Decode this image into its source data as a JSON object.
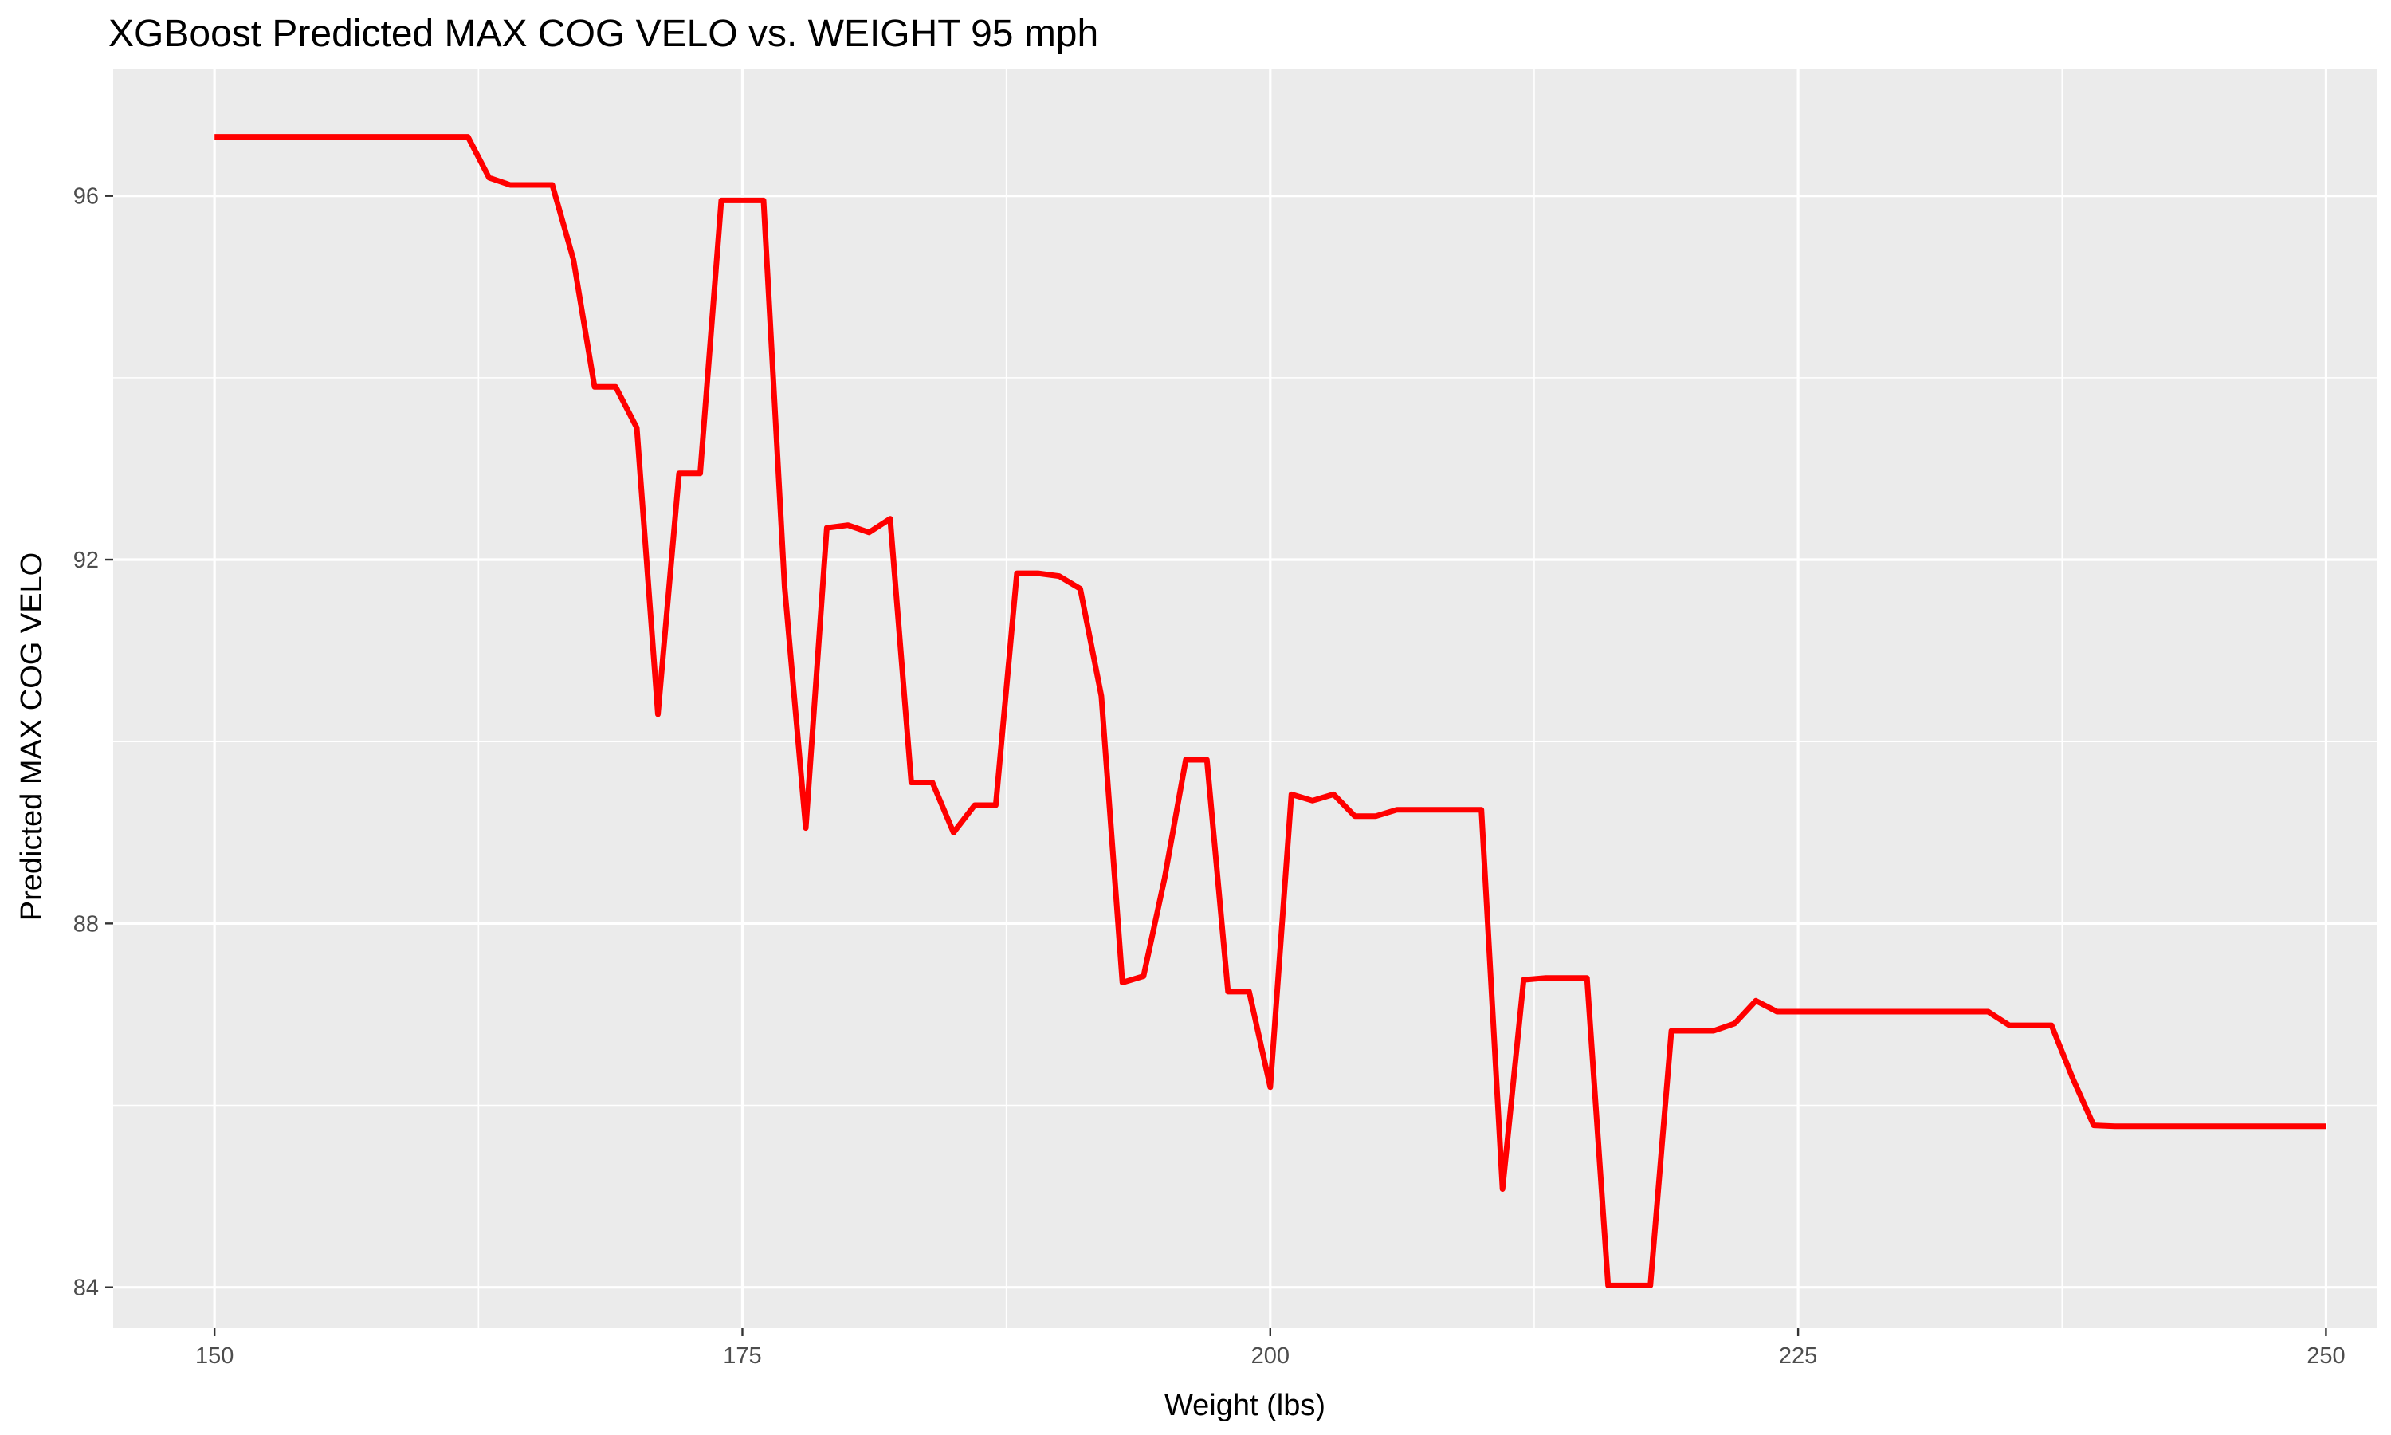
{
  "chart_data": {
    "type": "line",
    "title": "XGBoost Predicted MAX COG VELO vs. WEIGHT 95 mph",
    "xlabel": "Weight (lbs)",
    "ylabel": "Predicted MAX COG VELO",
    "xlim": [
      145.2,
      252.4
    ],
    "ylim": [
      83.55,
      97.4
    ],
    "x_ticks": [
      150,
      175,
      200,
      225,
      250
    ],
    "x_tick_labels": [
      "150",
      "175",
      "200",
      "225",
      "250"
    ],
    "y_ticks": [
      84,
      88,
      92,
      96
    ],
    "y_tick_labels": [
      "84",
      "88",
      "92",
      "96"
    ],
    "grid": true,
    "legend": "none",
    "series": [
      {
        "color": "#ff0000",
        "x": [
          150,
          162,
          163,
          164,
          166,
          167,
          168,
          169,
          170,
          171,
          172,
          173,
          174,
          176,
          177,
          178,
          179,
          180,
          181,
          182,
          183,
          184,
          185,
          186,
          187,
          188,
          189,
          190,
          191,
          192,
          193,
          194,
          195,
          196,
          197,
          198,
          199,
          200,
          201,
          202,
          203,
          204,
          205,
          206,
          210,
          211,
          212,
          213,
          215,
          216,
          218,
          219,
          221,
          222,
          223,
          224,
          234,
          235,
          237,
          238,
          239,
          240,
          250
        ],
        "y": [
          96.65,
          96.65,
          96.2,
          96.12,
          96.12,
          95.3,
          93.9,
          93.9,
          93.45,
          90.3,
          92.95,
          92.95,
          95.95,
          95.95,
          91.7,
          89.05,
          92.35,
          92.38,
          92.3,
          92.45,
          89.55,
          89.55,
          89.0,
          89.3,
          89.3,
          91.85,
          91.85,
          91.82,
          91.68,
          90.5,
          87.35,
          87.42,
          88.5,
          89.8,
          89.8,
          87.25,
          87.25,
          86.2,
          89.42,
          89.35,
          89.42,
          89.18,
          89.18,
          89.25,
          89.25,
          85.08,
          87.38,
          87.4,
          87.4,
          84.02,
          84.02,
          86.82,
          86.82,
          86.9,
          87.15,
          87.03,
          87.03,
          86.88,
          86.88,
          86.3,
          85.78,
          85.77,
          85.77
        ]
      }
    ]
  }
}
